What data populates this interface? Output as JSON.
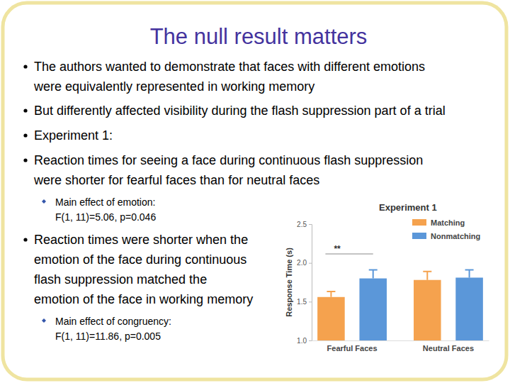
{
  "slide": {
    "title": "The null result matters",
    "bullets": [
      {
        "lines": [
          "The authors wanted to demonstrate that faces with different emotions",
          "were equivalently represented in working memory"
        ]
      },
      {
        "lines": [
          "But differently affected visibility during the flash suppression part of a trial"
        ]
      },
      {
        "lines": [
          "Experiment 1:"
        ]
      },
      {
        "lines": [
          "Reaction times for seeing a face during continuous flash suppression",
          "were shorter for fearful faces than for neutral faces"
        ],
        "sub_lines": [
          "Main effect of emotion:",
          "F(1, 11)=5.06, p=0.046"
        ]
      },
      {
        "lines": [
          "Reaction times were shorter when the",
          "emotion of the face during continuous",
          "flash suppression matched the",
          "emotion of the face in working memory"
        ],
        "sub_lines": [
          "Main effect of congruency:",
          "F(1, 11)=11.86, p=0.005"
        ]
      }
    ]
  },
  "chart_data": {
    "type": "bar",
    "title": "Experiment 1",
    "y_label": "Response Time (s)",
    "categories": [
      "Fearful Faces",
      "Neutral Faces"
    ],
    "series": [
      {
        "name": "Matching",
        "color": "#f5a24e",
        "values": [
          1.56,
          1.78
        ],
        "errors": [
          0.07,
          0.11
        ]
      },
      {
        "name": "Nonmatching",
        "color": "#5b97d9",
        "values": [
          1.8,
          1.81
        ],
        "errors": [
          0.11,
          0.1
        ]
      }
    ],
    "ylim": [
      1,
      2.5
    ],
    "yticks": [
      {
        "value": 1,
        "label": "1.0"
      },
      1.5,
      {
        "value": 2,
        "label": "2.0"
      },
      2.5
    ],
    "grid": false,
    "legend": "top-right",
    "annotations": [
      {
        "text": "**"
      }
    ]
  }
}
